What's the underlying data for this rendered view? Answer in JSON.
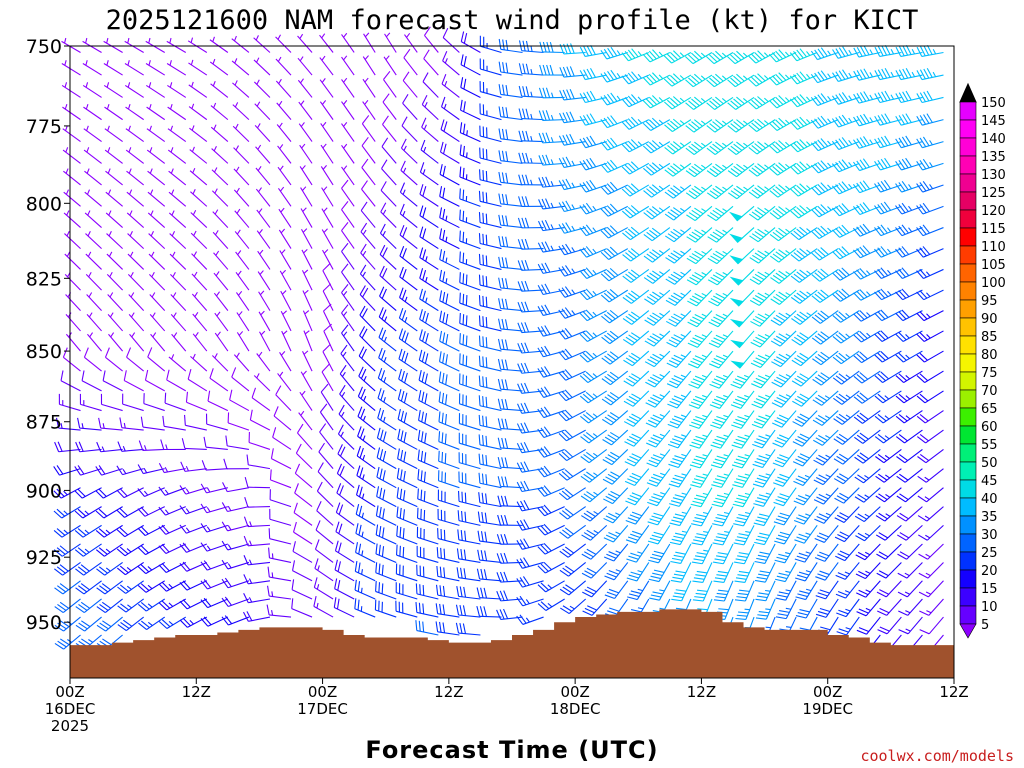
{
  "chart_data": {
    "type": "wind-barb-profile",
    "title": "2025121600 NAM forecast wind profile (kt) for KICT",
    "xlabel": "Forecast Time (UTC)",
    "ylabel": "",
    "x_ticks": [
      {
        "hour": 0,
        "lines": [
          "00Z",
          "16DEC",
          "2025"
        ]
      },
      {
        "hour": 12,
        "lines": [
          "12Z"
        ]
      },
      {
        "hour": 24,
        "lines": [
          "00Z",
          "17DEC"
        ]
      },
      {
        "hour": 36,
        "lines": [
          "12Z"
        ]
      },
      {
        "hour": 48,
        "lines": [
          "00Z",
          "18DEC"
        ]
      },
      {
        "hour": 60,
        "lines": [
          "12Z"
        ]
      },
      {
        "hour": 72,
        "lines": [
          "00Z",
          "19DEC"
        ]
      },
      {
        "hour": 84,
        "lines": [
          "12Z"
        ]
      }
    ],
    "xlim_hours": [
      0,
      84
    ],
    "y_ticks": [
      750,
      775,
      800,
      825,
      850,
      875,
      900,
      925,
      950
    ],
    "ylim_hpa": [
      750,
      972
    ],
    "y_scale": "log-pressure",
    "colorbar": {
      "levels": [
        5,
        10,
        15,
        20,
        25,
        30,
        35,
        40,
        45,
        50,
        55,
        60,
        65,
        70,
        75,
        80,
        85,
        90,
        95,
        100,
        105,
        110,
        115,
        120,
        125,
        130,
        135,
        140,
        145,
        150
      ],
      "colors": [
        "#8c00ff",
        "#6600ff",
        "#3c00ff",
        "#1400ff",
        "#0032ff",
        "#0064ff",
        "#0091ff",
        "#00bcff",
        "#00dbe6",
        "#00f0b4",
        "#00f078",
        "#00e632",
        "#3cf000",
        "#9bf000",
        "#d2f500",
        "#f5f500",
        "#ffe100",
        "#ffc300",
        "#ffa000",
        "#ff8200",
        "#ff6400",
        "#ff3c00",
        "#ff0000",
        "#f0003c",
        "#e60064",
        "#f00091",
        "#ff00b4",
        "#ff00d7",
        "#ff00f5",
        "#e600ff"
      ]
    },
    "surface_pressure": {
      "hours": [
        0,
        2,
        4,
        6,
        8,
        10,
        12,
        14,
        16,
        18,
        20,
        22,
        24,
        26,
        28,
        30,
        32,
        34,
        36,
        38,
        40,
        42,
        44,
        46,
        48,
        50,
        52,
        54,
        56,
        58,
        60,
        62,
        64,
        66,
        68,
        70,
        72,
        74,
        76,
        78,
        80,
        82,
        84
      ],
      "values": [
        959,
        959,
        958,
        957,
        956,
        955,
        955,
        954,
        953,
        952,
        952,
        952,
        953,
        955,
        956,
        956,
        956,
        957,
        958,
        958,
        957,
        955,
        953,
        950,
        948,
        947,
        946,
        946,
        945,
        945,
        946,
        950,
        952,
        953,
        953,
        953,
        955,
        956,
        958,
        959,
        959,
        959,
        960
      ],
      "color": "#a0522d"
    },
    "wind_profile": {
      "sample_hours": [
        0,
        6,
        12,
        18,
        24,
        30,
        36,
        42,
        48,
        54,
        60,
        66,
        72,
        78,
        84
      ],
      "sample_levels_hpa": [
        750,
        800,
        850,
        900,
        950
      ],
      "speed_kt": [
        [
          6,
          6,
          6,
          6,
          5,
          6,
          8,
          30,
          40,
          45,
          48,
          45,
          45,
          45,
          45
        ],
        [
          6,
          6,
          6,
          6,
          5,
          10,
          20,
          30,
          35,
          40,
          45,
          48,
          45,
          40,
          30
        ],
        [
          6,
          6,
          6,
          6,
          6,
          25,
          30,
          30,
          30,
          40,
          45,
          48,
          40,
          30,
          20
        ],
        [
          25,
          20,
          15,
          12,
          8,
          28,
          30,
          30,
          30,
          40,
          45,
          45,
          35,
          25,
          15
        ],
        [
          35,
          30,
          25,
          20,
          10,
          30,
          30,
          28,
          25,
          30,
          40,
          35,
          30,
          20,
          10
        ]
      ],
      "direction_deg": [
        [
          300,
          300,
          300,
          310,
          320,
          330,
          320,
          280,
          270,
          250,
          240,
          240,
          250,
          260,
          260
        ],
        [
          310,
          310,
          310,
          320,
          330,
          320,
          300,
          280,
          260,
          240,
          230,
          230,
          240,
          250,
          250
        ],
        [
          320,
          320,
          320,
          330,
          340,
          310,
          300,
          280,
          250,
          230,
          220,
          220,
          230,
          240,
          240
        ],
        [
          240,
          240,
          250,
          260,
          320,
          300,
          290,
          280,
          240,
          220,
          210,
          210,
          220,
          230,
          230
        ],
        [
          230,
          230,
          240,
          250,
          300,
          290,
          280,
          270,
          230,
          210,
          200,
          200,
          210,
          220,
          220
        ]
      ]
    }
  },
  "credit": "coolwx.com/models"
}
